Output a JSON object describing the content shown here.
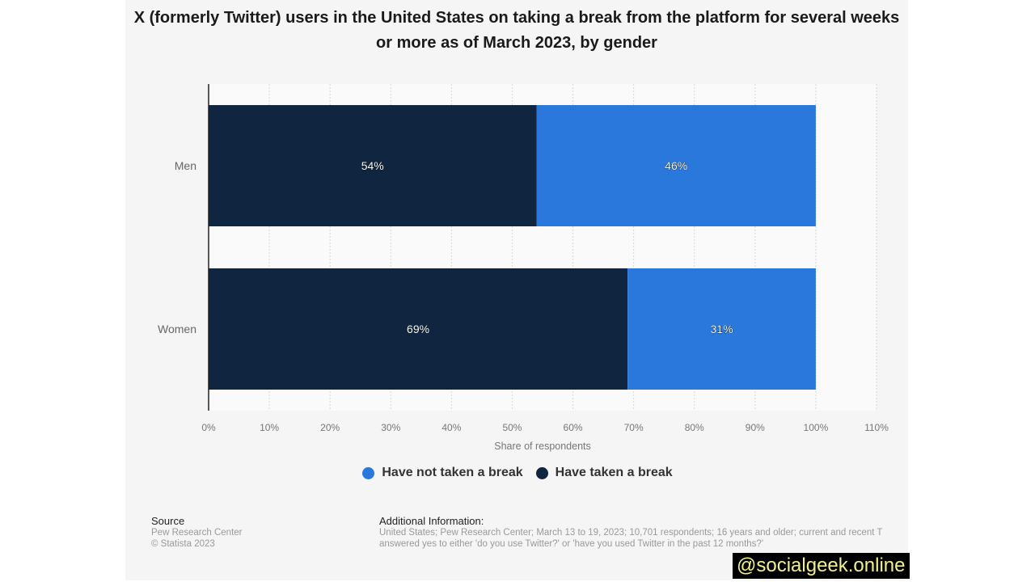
{
  "chart_data": {
    "type": "bar",
    "orientation": "horizontal",
    "stacked": true,
    "title": "X (formerly Twitter) users in the United States on taking a break from the platform for several weeks or more as of March 2023, by gender",
    "categories": [
      "Men",
      "Women"
    ],
    "series": [
      {
        "name": "Have taken a break",
        "values": [
          54,
          69
        ],
        "color": "#0f2540"
      },
      {
        "name": "Have not taken a break",
        "values": [
          46,
          31
        ],
        "color": "#2a78dc"
      }
    ],
    "data_labels": [
      [
        "54%",
        "69%"
      ],
      [
        "46%",
        "31%"
      ]
    ],
    "xlabel": "Share of respondents",
    "xlim": [
      0,
      110
    ],
    "xticks": [
      "0%",
      "10%",
      "20%",
      "30%",
      "40%",
      "50%",
      "60%",
      "70%",
      "80%",
      "90%",
      "100%",
      "110%"
    ],
    "grid": true,
    "legend_placement": "bottom",
    "legend": [
      "Have not taken a break",
      "Have taken a break"
    ]
  },
  "source": {
    "heading": "Source",
    "lines": [
      "Pew Research Center",
      "© Statista 2023"
    ]
  },
  "additional": {
    "heading": "Additional Information:",
    "lines": [
      "United States; Pew Research Center; March 13 to 19, 2023; 10,701 respondents; 16 years and older; current and recent T",
      "answered yes to either 'do you use Twitter?' or 'have you used Twitter in the past 12 months?'"
    ]
  },
  "watermark": "@socialgeek.online"
}
